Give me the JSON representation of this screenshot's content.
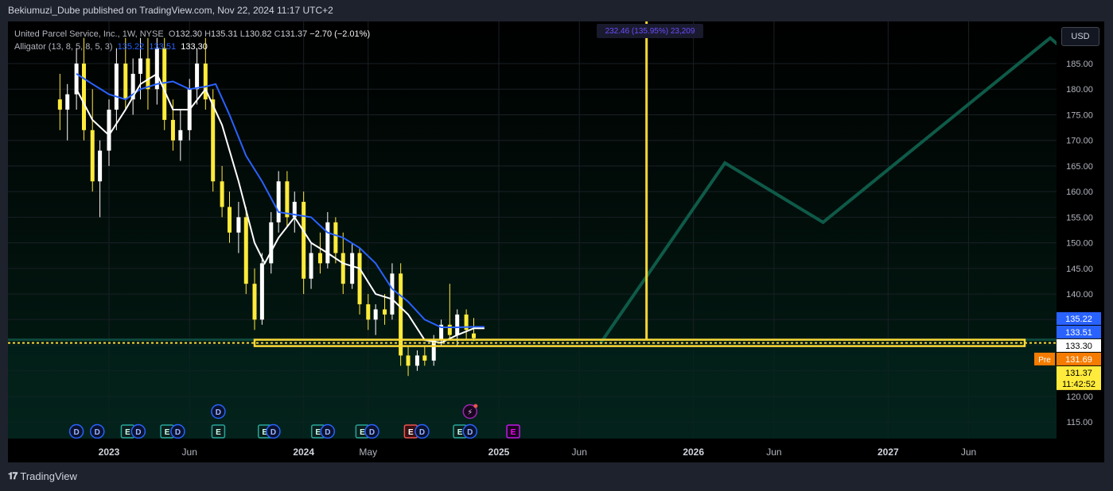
{
  "header": {
    "published_line": "Bekiumuzi_Dube published on TradingView.com, Nov 22, 2024 11:17 UTC+2"
  },
  "legend": {
    "title": "United Parcel Service, Inc., 1W, NYSE",
    "open_label": "O",
    "open": "132.30",
    "high_label": "H",
    "high": "135.31",
    "low_label": "L",
    "low": "130.82",
    "close_label": "C",
    "close": "131.37",
    "change": "−2.70 (−2.01%)",
    "indicator_name": "Alligator (13, 8, 5, 8, 5, 3)",
    "ind_v1": "135.22",
    "ind_v2": "133.51",
    "ind_v3": "133.30"
  },
  "currency": "USD",
  "top_annotation": "232.46 (135.95%) 23,209",
  "footer": {
    "brand": "TradingView"
  },
  "colors": {
    "bg": "#000000",
    "grid": "#1a1f24",
    "zone": "#04241d",
    "candle": "#ffeb3b",
    "candle_dn": "#ffffff",
    "jaw": "#2962ff",
    "lips": "#ffffff",
    "path": "#0e5a48",
    "level": "#fdd835"
  },
  "chart_data": {
    "type": "candlestick",
    "symbol": "UPS",
    "interval": "1W",
    "y_axis": {
      "min": 110,
      "max": 190,
      "ticks": [
        115,
        120,
        125,
        130,
        135,
        140,
        145,
        150,
        155,
        160,
        165,
        170,
        175,
        180,
        185
      ]
    },
    "x_axis_labels": [
      {
        "label": "2023",
        "date": "2023-01-01",
        "bold": true
      },
      {
        "label": "Jun",
        "date": "2023-06-01",
        "bold": false
      },
      {
        "label": "2024",
        "date": "2024-01-01",
        "bold": true
      },
      {
        "label": "May",
        "date": "2024-05-01",
        "bold": false
      },
      {
        "label": "2025",
        "date": "2025-01-01",
        "bold": true
      },
      {
        "label": "Jun",
        "date": "2025-06-01",
        "bold": false
      },
      {
        "label": "2026",
        "date": "2026-01-01",
        "bold": true
      },
      {
        "label": "Jun",
        "date": "2026-06-01",
        "bold": false
      },
      {
        "label": "2027",
        "date": "2027-01-01",
        "bold": true
      },
      {
        "label": "Jun",
        "date": "2027-06-01",
        "bold": false
      }
    ],
    "price_tags": [
      {
        "value": "135.22",
        "price": 135.22,
        "bg": "#2962ff",
        "fg": "#ffffff"
      },
      {
        "value": "133.51",
        "price": 133.51,
        "bg": "#2962ff",
        "fg": "#ffffff"
      },
      {
        "value": "133.30",
        "price": 133.3,
        "bg": "#ffffff",
        "fg": "#000000"
      },
      {
        "value": "131.69",
        "price": 131.69,
        "bg": "#f57c00",
        "fg": "#ffffff",
        "prefix": "Pre"
      },
      {
        "value": "131.37",
        "price": 131.37,
        "bg": "#ffeb3b",
        "fg": "#000000",
        "sub": "11:42:52"
      }
    ],
    "support_level": 130.3,
    "projection_path": [
      {
        "date": "2025-07-10",
        "price": 130.3
      },
      {
        "date": "2026-03-01",
        "price": 165.6
      },
      {
        "date": "2026-09-01",
        "price": 154.0
      },
      {
        "date": "2027-11-01",
        "price": 190.0
      },
      {
        "date": "2028-01-01",
        "price": 184.5
      }
    ],
    "vertical_line_date": "2025-10-05",
    "candles": [
      {
        "d": "2022-10-01",
        "o": 178.0,
        "h": 183.0,
        "l": 172.0,
        "c": 176.0
      },
      {
        "d": "2022-10-15",
        "o": 176.0,
        "h": 181.0,
        "l": 170.0,
        "c": 179.0
      },
      {
        "d": "2022-11-01",
        "o": 179.0,
        "h": 188.0,
        "l": 176.0,
        "c": 185.0
      },
      {
        "d": "2022-11-15",
        "o": 185.0,
        "h": 190.0,
        "l": 170.0,
        "c": 172.0
      },
      {
        "d": "2022-12-01",
        "o": 172.0,
        "h": 180.0,
        "l": 160.0,
        "c": 162.0
      },
      {
        "d": "2022-12-15",
        "o": 162.0,
        "h": 170.0,
        "l": 155.0,
        "c": 168.0
      },
      {
        "d": "2023-01-01",
        "o": 168.0,
        "h": 178.0,
        "l": 165.0,
        "c": 176.0
      },
      {
        "d": "2023-01-15",
        "o": 176.0,
        "h": 188.0,
        "l": 172.0,
        "c": 185.0
      },
      {
        "d": "2023-02-01",
        "o": 185.0,
        "h": 190.0,
        "l": 176.0,
        "c": 178.0
      },
      {
        "d": "2023-02-15",
        "o": 178.0,
        "h": 186.0,
        "l": 175.0,
        "c": 183.0
      },
      {
        "d": "2023-03-01",
        "o": 183.0,
        "h": 190.0,
        "l": 178.0,
        "c": 186.0
      },
      {
        "d": "2023-03-15",
        "o": 186.0,
        "h": 190.0,
        "l": 176.0,
        "c": 180.0
      },
      {
        "d": "2023-04-01",
        "o": 180.0,
        "h": 190.0,
        "l": 177.0,
        "c": 188.0
      },
      {
        "d": "2023-04-15",
        "o": 188.0,
        "h": 190.0,
        "l": 172.0,
        "c": 174.0
      },
      {
        "d": "2023-05-01",
        "o": 174.0,
        "h": 178.0,
        "l": 168.0,
        "c": 170.0
      },
      {
        "d": "2023-05-15",
        "o": 170.0,
        "h": 176.0,
        "l": 166.0,
        "c": 172.0
      },
      {
        "d": "2023-06-01",
        "o": 172.0,
        "h": 182.0,
        "l": 170.0,
        "c": 180.0
      },
      {
        "d": "2023-06-15",
        "o": 180.0,
        "h": 188.0,
        "l": 177.0,
        "c": 185.0
      },
      {
        "d": "2023-07-01",
        "o": 185.0,
        "h": 190.0,
        "l": 176.0,
        "c": 178.0
      },
      {
        "d": "2023-07-15",
        "o": 178.0,
        "h": 180.0,
        "l": 160.0,
        "c": 162.0
      },
      {
        "d": "2023-08-01",
        "o": 162.0,
        "h": 165.0,
        "l": 155.0,
        "c": 157.0
      },
      {
        "d": "2023-08-15",
        "o": 157.0,
        "h": 160.0,
        "l": 150.0,
        "c": 152.0
      },
      {
        "d": "2023-09-01",
        "o": 152.0,
        "h": 158.0,
        "l": 148.0,
        "c": 155.0
      },
      {
        "d": "2023-09-15",
        "o": 155.0,
        "h": 157.0,
        "l": 140.0,
        "c": 142.0
      },
      {
        "d": "2023-10-01",
        "o": 142.0,
        "h": 145.0,
        "l": 133.0,
        "c": 135.0
      },
      {
        "d": "2023-10-15",
        "o": 135.0,
        "h": 148.0,
        "l": 134.0,
        "c": 146.0
      },
      {
        "d": "2023-11-01",
        "o": 146.0,
        "h": 156.0,
        "l": 144.0,
        "c": 154.0
      },
      {
        "d": "2023-11-15",
        "o": 154.0,
        "h": 164.0,
        "l": 152.0,
        "c": 162.0
      },
      {
        "d": "2023-12-01",
        "o": 162.0,
        "h": 164.0,
        "l": 153.0,
        "c": 155.0
      },
      {
        "d": "2023-12-15",
        "o": 155.0,
        "h": 160.0,
        "l": 152.0,
        "c": 158.0
      },
      {
        "d": "2024-01-01",
        "o": 158.0,
        "h": 160.0,
        "l": 140.0,
        "c": 143.0
      },
      {
        "d": "2024-01-15",
        "o": 143.0,
        "h": 150.0,
        "l": 141.0,
        "c": 148.0
      },
      {
        "d": "2024-02-01",
        "o": 148.0,
        "h": 152.0,
        "l": 144.0,
        "c": 146.0
      },
      {
        "d": "2024-02-15",
        "o": 146.0,
        "h": 156.0,
        "l": 145.0,
        "c": 154.0
      },
      {
        "d": "2024-03-01",
        "o": 154.0,
        "h": 155.0,
        "l": 146.0,
        "c": 148.0
      },
      {
        "d": "2024-03-15",
        "o": 148.0,
        "h": 152.0,
        "l": 140.0,
        "c": 142.0
      },
      {
        "d": "2024-04-01",
        "o": 142.0,
        "h": 150.0,
        "l": 141.0,
        "c": 148.0
      },
      {
        "d": "2024-04-15",
        "o": 148.0,
        "h": 149.0,
        "l": 136.0,
        "c": 138.0
      },
      {
        "d": "2024-05-01",
        "o": 138.0,
        "h": 140.0,
        "l": 133.0,
        "c": 135.0
      },
      {
        "d": "2024-05-15",
        "o": 135.0,
        "h": 138.0,
        "l": 132.0,
        "c": 137.0
      },
      {
        "d": "2024-06-01",
        "o": 137.0,
        "h": 140.0,
        "l": 134.0,
        "c": 136.0
      },
      {
        "d": "2024-06-15",
        "o": 136.0,
        "h": 146.0,
        "l": 135.0,
        "c": 144.0
      },
      {
        "d": "2024-07-01",
        "o": 144.0,
        "h": 146.0,
        "l": 126.0,
        "c": 128.0
      },
      {
        "d": "2024-07-15",
        "o": 128.0,
        "h": 130.0,
        "l": 124.0,
        "c": 126.0
      },
      {
        "d": "2024-08-01",
        "o": 126.0,
        "h": 129.0,
        "l": 125.0,
        "c": 128.0
      },
      {
        "d": "2024-08-15",
        "o": 128.0,
        "h": 130.0,
        "l": 126.0,
        "c": 127.0
      },
      {
        "d": "2024-09-01",
        "o": 127.0,
        "h": 132.0,
        "l": 126.0,
        "c": 131.0
      },
      {
        "d": "2024-09-15",
        "o": 131.0,
        "h": 135.0,
        "l": 130.0,
        "c": 134.0
      },
      {
        "d": "2024-10-01",
        "o": 134.0,
        "h": 142.0,
        "l": 131.0,
        "c": 132.0
      },
      {
        "d": "2024-10-15",
        "o": 132.0,
        "h": 137.0,
        "l": 130.0,
        "c": 136.0
      },
      {
        "d": "2024-11-01",
        "o": 136.0,
        "h": 137.0,
        "l": 131.0,
        "c": 133.0
      },
      {
        "d": "2024-11-15",
        "o": 132.3,
        "h": 135.31,
        "l": 130.82,
        "c": 131.37
      }
    ],
    "alligator_jaw": [
      {
        "d": "2022-11-01",
        "v": 183.0
      },
      {
        "d": "2022-12-01",
        "v": 181.0
      },
      {
        "d": "2023-01-01",
        "v": 179.0
      },
      {
        "d": "2023-02-01",
        "v": 178.0
      },
      {
        "d": "2023-03-01",
        "v": 180.0
      },
      {
        "d": "2023-04-01",
        "v": 181.0
      },
      {
        "d": "2023-05-01",
        "v": 181.5
      },
      {
        "d": "2023-06-01",
        "v": 180.0
      },
      {
        "d": "2023-07-01",
        "v": 180.5
      },
      {
        "d": "2023-07-20",
        "v": 181.0
      },
      {
        "d": "2023-08-15",
        "v": 175.0
      },
      {
        "d": "2023-09-15",
        "v": 167.0
      },
      {
        "d": "2023-10-15",
        "v": 162.0
      },
      {
        "d": "2023-11-15",
        "v": 156.0
      },
      {
        "d": "2023-12-15",
        "v": 155.5
      },
      {
        "d": "2024-01-15",
        "v": 155.0
      },
      {
        "d": "2024-02-15",
        "v": 152.0
      },
      {
        "d": "2024-03-15",
        "v": 151.0
      },
      {
        "d": "2024-04-15",
        "v": 149.0
      },
      {
        "d": "2024-05-15",
        "v": 146.0
      },
      {
        "d": "2024-06-15",
        "v": 141.0
      },
      {
        "d": "2024-07-15",
        "v": 138.5
      },
      {
        "d": "2024-08-15",
        "v": 135.0
      },
      {
        "d": "2024-09-15",
        "v": 133.5
      },
      {
        "d": "2024-10-15",
        "v": 133.5
      },
      {
        "d": "2024-11-15",
        "v": 133.6
      },
      {
        "d": "2024-12-05",
        "v": 133.6
      }
    ],
    "alligator_lips": [
      {
        "d": "2022-11-01",
        "v": 180.0
      },
      {
        "d": "2022-12-01",
        "v": 174.0
      },
      {
        "d": "2023-01-01",
        "v": 171.0
      },
      {
        "d": "2023-02-01",
        "v": 176.0
      },
      {
        "d": "2023-03-01",
        "v": 181.0
      },
      {
        "d": "2023-04-01",
        "v": 183.0
      },
      {
        "d": "2023-05-01",
        "v": 176.0
      },
      {
        "d": "2023-06-01",
        "v": 176.0
      },
      {
        "d": "2023-07-01",
        "v": 180.0
      },
      {
        "d": "2023-08-01",
        "v": 173.0
      },
      {
        "d": "2023-09-01",
        "v": 162.0
      },
      {
        "d": "2023-10-01",
        "v": 150.0
      },
      {
        "d": "2023-10-20",
        "v": 146.0
      },
      {
        "d": "2023-11-15",
        "v": 151.0
      },
      {
        "d": "2023-12-15",
        "v": 155.0
      },
      {
        "d": "2024-01-15",
        "v": 150.0
      },
      {
        "d": "2024-02-15",
        "v": 148.0
      },
      {
        "d": "2024-03-15",
        "v": 146.0
      },
      {
        "d": "2024-04-15",
        "v": 145.0
      },
      {
        "d": "2024-05-15",
        "v": 140.0
      },
      {
        "d": "2024-06-15",
        "v": 139.0
      },
      {
        "d": "2024-07-15",
        "v": 136.0
      },
      {
        "d": "2024-08-15",
        "v": 131.0
      },
      {
        "d": "2024-09-15",
        "v": 130.5
      },
      {
        "d": "2024-10-15",
        "v": 132.0
      },
      {
        "d": "2024-11-15",
        "v": 133.3
      },
      {
        "d": "2024-12-05",
        "v": 133.3
      }
    ],
    "event_markers": [
      {
        "d": "2022-11-01",
        "label": "D",
        "kind": "dividend",
        "row": 1
      },
      {
        "d": "2022-12-10",
        "label": "D",
        "kind": "dividend",
        "row": 1
      },
      {
        "d": "2023-02-05",
        "label": "E",
        "kind": "earnings",
        "row": 1
      },
      {
        "d": "2023-02-25",
        "label": "D",
        "kind": "dividend",
        "row": 1
      },
      {
        "d": "2023-04-20",
        "label": "E",
        "kind": "earnings",
        "row": 1
      },
      {
        "d": "2023-05-10",
        "label": "D",
        "kind": "dividend",
        "row": 1
      },
      {
        "d": "2023-07-25",
        "label": "E",
        "kind": "earnings",
        "row": 1
      },
      {
        "d": "2023-07-25",
        "label": "D",
        "kind": "dividend",
        "row": 0
      },
      {
        "d": "2023-10-20",
        "label": "E",
        "kind": "earnings",
        "row": 1
      },
      {
        "d": "2023-11-05",
        "label": "D",
        "kind": "dividend",
        "row": 1
      },
      {
        "d": "2024-01-28",
        "label": "E",
        "kind": "earnings",
        "row": 1
      },
      {
        "d": "2024-02-15",
        "label": "D",
        "kind": "dividend",
        "row": 1
      },
      {
        "d": "2024-04-20",
        "label": "E",
        "kind": "earnings",
        "row": 1
      },
      {
        "d": "2024-05-08",
        "label": "D",
        "kind": "dividend",
        "row": 1
      },
      {
        "d": "2024-07-20",
        "label": "E",
        "kind": "earnings_neg",
        "row": 1
      },
      {
        "d": "2024-08-10",
        "label": "D",
        "kind": "dividend",
        "row": 1
      },
      {
        "d": "2024-10-20",
        "label": "E",
        "kind": "earnings",
        "row": 1
      },
      {
        "d": "2024-11-08",
        "label": "D",
        "kind": "dividend",
        "row": 1
      },
      {
        "d": "2024-11-08",
        "label": "⚡",
        "kind": "split",
        "row": 0
      },
      {
        "d": "2025-01-28",
        "label": "E",
        "kind": "earnings_future",
        "row": 1
      }
    ]
  }
}
